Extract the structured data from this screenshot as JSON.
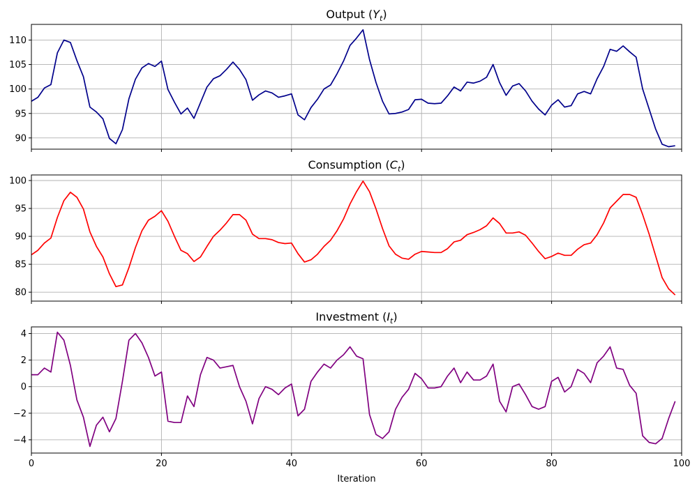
{
  "chart_data": [
    {
      "type": "line",
      "title": "Output (",
      "title_var": "Y",
      "title_sub": "t",
      "title_end": ")",
      "color": "#00008b",
      "xlim": [
        0,
        100
      ],
      "ylim": [
        87.7,
        113.2
      ],
      "yticks": [
        90,
        95,
        100,
        105,
        110
      ],
      "ytick_labels": [
        "90",
        "95",
        "100",
        "105",
        "110"
      ],
      "grid": true,
      "series": [
        {
          "x": [
            0,
            1,
            2,
            3,
            4,
            5,
            6,
            7,
            8,
            9,
            10,
            11,
            12,
            13,
            14,
            15,
            16,
            17,
            18,
            19,
            20,
            21,
            22,
            23,
            24,
            25,
            26,
            27,
            28,
            29,
            30,
            31,
            32,
            33,
            34,
            35,
            36,
            37,
            38,
            39,
            40,
            41,
            42,
            43,
            44,
            45,
            46,
            47,
            48,
            49,
            50,
            51,
            52,
            53,
            54,
            55,
            56,
            57,
            58,
            59,
            60,
            61,
            62,
            63,
            64,
            65,
            66,
            67,
            68,
            69,
            70,
            71,
            72,
            73,
            74,
            75,
            76,
            77,
            78,
            79,
            80,
            81,
            82,
            83,
            84,
            85,
            86,
            87,
            88,
            89,
            90,
            91,
            92,
            93,
            94,
            95,
            96,
            97,
            98,
            99
          ],
          "y": [
            97.5,
            98.3,
            100.2,
            100.9,
            107.4,
            110.0,
            109.5,
            105.8,
            102.5,
            96.3,
            95.3,
            93.9,
            89.9,
            88.8,
            91.7,
            98.0,
            102.0,
            104.3,
            105.2,
            104.6,
            105.7,
            99.9,
            97.3,
            94.9,
            96.1,
            94.0,
            97.2,
            100.4,
            102.1,
            102.7,
            104.0,
            105.5,
            104.0,
            101.9,
            97.7,
            98.8,
            99.6,
            99.2,
            98.3,
            98.6,
            99.0,
            94.7,
            93.7,
            96.2,
            97.9,
            100.0,
            100.8,
            103.1,
            105.7,
            108.9,
            110.4,
            112.1,
            106.0,
            101.3,
            97.5,
            94.9,
            95.0,
            95.3,
            95.8,
            97.8,
            97.9,
            97.1,
            97.0,
            97.1,
            98.6,
            100.4,
            99.6,
            101.4,
            101.2,
            101.6,
            102.4,
            105.0,
            101.3,
            98.7,
            100.6,
            101.1,
            99.6,
            97.5,
            95.9,
            94.7,
            96.7,
            97.8,
            96.3,
            96.6,
            99.0,
            99.5,
            99.0,
            102.1,
            104.6,
            108.1,
            107.7,
            108.8,
            107.6,
            106.5,
            100.0,
            95.9,
            91.8,
            88.7,
            88.2,
            88.4
          ]
        }
      ]
    },
    {
      "type": "line",
      "title": "Consumption (",
      "title_var": "C",
      "title_sub": "t",
      "title_end": ")",
      "color": "#ff0000",
      "xlim": [
        0,
        100
      ],
      "ylim": [
        78.4,
        101.0
      ],
      "yticks": [
        80,
        85,
        90,
        95,
        100
      ],
      "ytick_labels": [
        "80",
        "85",
        "90",
        "95",
        "100"
      ],
      "grid": true,
      "series": [
        {
          "x": [
            0,
            1,
            2,
            3,
            4,
            5,
            6,
            7,
            8,
            9,
            10,
            11,
            12,
            13,
            14,
            15,
            16,
            17,
            18,
            19,
            20,
            21,
            22,
            23,
            24,
            25,
            26,
            27,
            28,
            29,
            30,
            31,
            32,
            33,
            34,
            35,
            36,
            37,
            38,
            39,
            40,
            41,
            42,
            43,
            44,
            45,
            46,
            47,
            48,
            49,
            50,
            51,
            52,
            53,
            54,
            55,
            56,
            57,
            58,
            59,
            60,
            61,
            62,
            63,
            64,
            65,
            66,
            67,
            68,
            69,
            70,
            71,
            72,
            73,
            74,
            75,
            76,
            77,
            78,
            79,
            80,
            81,
            82,
            83,
            84,
            85,
            86,
            87,
            88,
            89,
            90,
            91,
            92,
            93,
            94,
            95,
            96,
            97,
            98,
            99
          ],
          "y": [
            86.7,
            87.5,
            88.8,
            89.7,
            93.4,
            96.4,
            97.9,
            97.0,
            94.9,
            90.8,
            88.2,
            86.3,
            83.3,
            81.0,
            81.3,
            84.4,
            88.0,
            91.0,
            92.9,
            93.6,
            94.6,
            92.7,
            90.0,
            87.5,
            86.9,
            85.5,
            86.3,
            88.2,
            90.0,
            91.1,
            92.4,
            93.9,
            93.9,
            92.9,
            90.4,
            89.6,
            89.6,
            89.4,
            88.9,
            88.7,
            88.8,
            86.9,
            85.4,
            85.8,
            86.8,
            88.2,
            89.3,
            91.0,
            93.1,
            95.8,
            98.0,
            99.9,
            98.0,
            94.9,
            91.4,
            88.3,
            86.8,
            86.1,
            85.9,
            86.8,
            87.3,
            87.2,
            87.1,
            87.1,
            87.8,
            89.0,
            89.3,
            90.3,
            90.7,
            91.2,
            91.9,
            93.3,
            92.3,
            90.6,
            90.6,
            90.8,
            90.2,
            88.8,
            87.3,
            86.0,
            86.4,
            87.0,
            86.6,
            86.6,
            87.7,
            88.5,
            88.8,
            90.3,
            92.4,
            95.1,
            96.3,
            97.5,
            97.5,
            97.0,
            93.9,
            90.4,
            86.5,
            82.6,
            80.6,
            79.5
          ]
        }
      ]
    },
    {
      "type": "line",
      "title": "Investment (",
      "title_var": "I",
      "title_sub": "t",
      "title_end": ")",
      "color": "#800080",
      "xlim": [
        0,
        100
      ],
      "ylim": [
        -5.0,
        4.5
      ],
      "yticks": [
        -4,
        -2,
        0,
        2,
        4
      ],
      "ytick_labels": [
        "−4",
        "−2",
        "0",
        "2",
        "4"
      ],
      "xticks": [
        0,
        20,
        40,
        60,
        80,
        100
      ],
      "xtick_labels": [
        "0",
        "20",
        "40",
        "60",
        "80",
        "100"
      ],
      "xlabel": "Iteration",
      "grid": true,
      "series": [
        {
          "x": [
            0,
            1,
            2,
            3,
            4,
            5,
            6,
            7,
            8,
            9,
            10,
            11,
            12,
            13,
            14,
            15,
            16,
            17,
            18,
            19,
            20,
            21,
            22,
            23,
            24,
            25,
            26,
            27,
            28,
            29,
            30,
            31,
            32,
            33,
            34,
            35,
            36,
            37,
            38,
            39,
            40,
            41,
            42,
            43,
            44,
            45,
            46,
            47,
            48,
            49,
            50,
            51,
            52,
            53,
            54,
            55,
            56,
            57,
            58,
            59,
            60,
            61,
            62,
            63,
            64,
            65,
            66,
            67,
            68,
            69,
            70,
            71,
            72,
            73,
            74,
            75,
            76,
            77,
            78,
            79,
            80,
            81,
            82,
            83,
            84,
            85,
            86,
            87,
            88,
            89,
            90,
            91,
            92,
            93,
            94,
            95,
            96,
            97,
            98,
            99
          ],
          "y": [
            0.9,
            0.9,
            1.4,
            1.1,
            4.1,
            3.5,
            1.6,
            -1.0,
            -2.3,
            -4.5,
            -2.9,
            -2.3,
            -3.4,
            -2.4,
            0.4,
            3.5,
            4.0,
            3.3,
            2.2,
            0.8,
            1.1,
            -2.6,
            -2.7,
            -2.7,
            -0.7,
            -1.5,
            0.9,
            2.2,
            2.0,
            1.4,
            1.5,
            1.6,
            0.0,
            -1.1,
            -2.8,
            -0.9,
            0.0,
            -0.2,
            -0.6,
            -0.1,
            0.2,
            -2.2,
            -1.7,
            0.4,
            1.1,
            1.7,
            1.4,
            2.0,
            2.4,
            3.0,
            2.3,
            2.1,
            -2.1,
            -3.6,
            -3.9,
            -3.4,
            -1.7,
            -0.8,
            -0.2,
            1.0,
            0.6,
            -0.1,
            -0.1,
            0.0,
            0.8,
            1.4,
            0.3,
            1.1,
            0.5,
            0.5,
            0.8,
            1.7,
            -1.1,
            -1.9,
            0.0,
            0.2,
            -0.6,
            -1.5,
            -1.7,
            -1.5,
            0.4,
            0.7,
            -0.4,
            0.0,
            1.3,
            1.0,
            0.3,
            1.8,
            2.3,
            3.0,
            1.4,
            1.3,
            0.1,
            -0.5,
            -3.7,
            -4.2,
            -4.3,
            -3.9,
            -2.4,
            -1.1
          ]
        }
      ]
    }
  ]
}
